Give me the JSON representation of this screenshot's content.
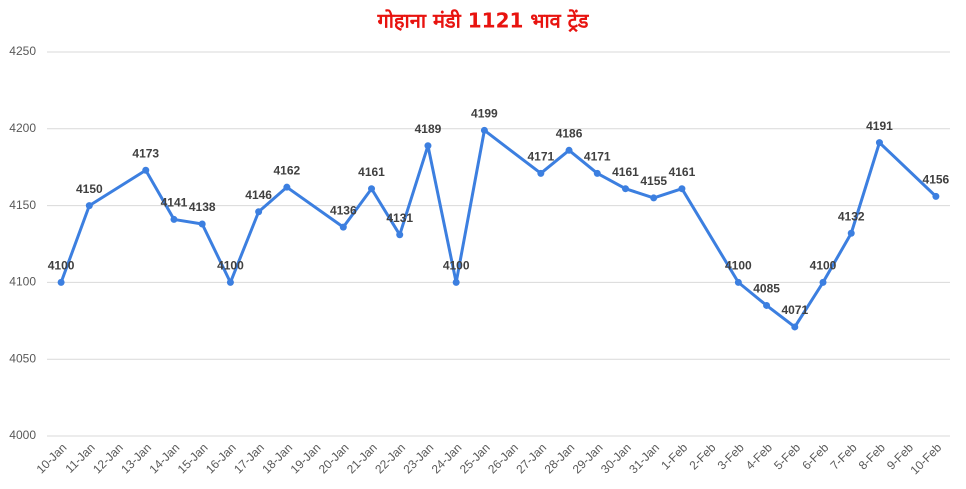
{
  "chart_data": {
    "type": "line",
    "title": "गोहाना मंडी 1121 भाव ट्रेंड",
    "categories": [
      "10-Jan",
      "11-Jan",
      "12-Jan",
      "13-Jan",
      "14-Jan",
      "15-Jan",
      "16-Jan",
      "17-Jan",
      "18-Jan",
      "19-Jan",
      "20-Jan",
      "21-Jan",
      "22-Jan",
      "23-Jan",
      "24-Jan",
      "25-Jan",
      "26-Jan",
      "27-Jan",
      "28-Jan",
      "29-Jan",
      "30-Jan",
      "31-Jan",
      "1-Feb",
      "2-Feb",
      "3-Feb",
      "4-Feb",
      "5-Feb",
      "6-Feb",
      "7-Feb",
      "8-Feb",
      "9-Feb",
      "10-Feb"
    ],
    "values": [
      4100,
      4150,
      null,
      4173,
      4141,
      4138,
      4100,
      4146,
      4162,
      null,
      4136,
      4161,
      4131,
      4189,
      4100,
      4199,
      null,
      4171,
      4186,
      4171,
      4161,
      4155,
      4161,
      null,
      4100,
      4085,
      4071,
      4100,
      4132,
      4191,
      null,
      4156
    ],
    "color": "#3c7fe0",
    "ylim": [
      4000,
      4250
    ],
    "yticks": [
      4000,
      4050,
      4100,
      4150,
      4200,
      4250
    ],
    "grid": true
  }
}
